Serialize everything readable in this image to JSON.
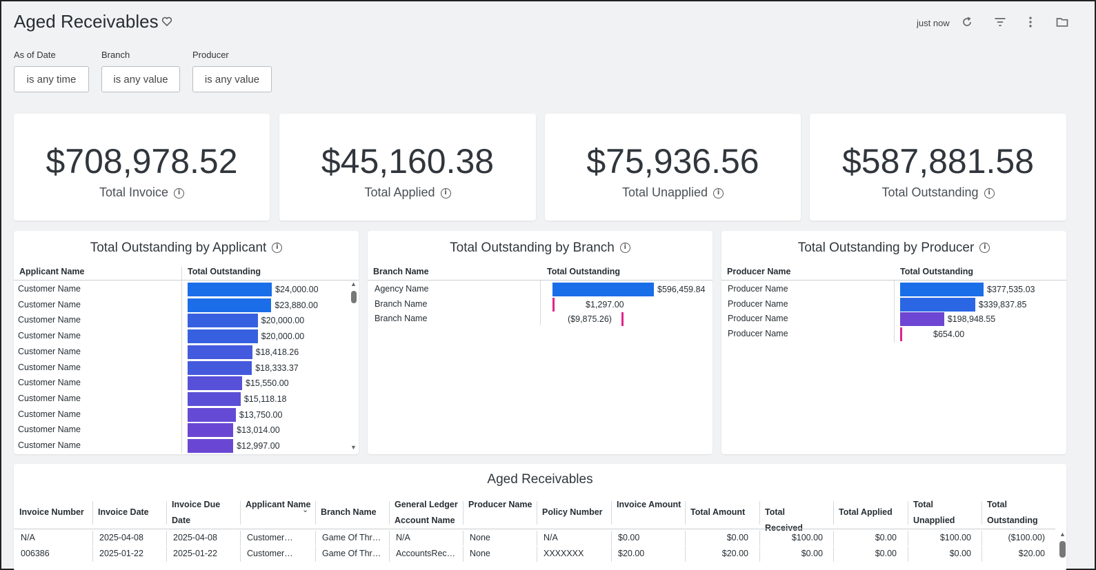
{
  "header": {
    "title": "Aged Receivables",
    "updated": "just now"
  },
  "filters": [
    {
      "label": "As of Date",
      "value": "is any time"
    },
    {
      "label": "Branch",
      "value": "is any value"
    },
    {
      "label": "Producer",
      "value": "is any value"
    }
  ],
  "kpis": [
    {
      "value": "$708,978.52",
      "label": "Total Invoice"
    },
    {
      "value": "$45,160.38",
      "label": "Total Applied"
    },
    {
      "value": "$75,936.56",
      "label": "Total Unapplied"
    },
    {
      "value": "$587,881.58",
      "label": "Total Outstanding"
    }
  ],
  "tiles": {
    "applicant": {
      "title": "Total Outstanding by Applicant",
      "col1": "Applicant Name",
      "col2": "Total Outstanding",
      "max": 24000,
      "rows": [
        {
          "name": "Customer Name",
          "value": 24000.0,
          "label": "$24,000.00"
        },
        {
          "name": "Customer Name",
          "value": 23880.0,
          "label": "$23,880.00"
        },
        {
          "name": "Customer Name",
          "value": 20000.0,
          "label": "$20,000.00"
        },
        {
          "name": "Customer Name",
          "value": 20000.0,
          "label": "$20,000.00"
        },
        {
          "name": "Customer Name",
          "value": 18418.26,
          "label": "$18,418.26"
        },
        {
          "name": "Customer Name",
          "value": 18333.37,
          "label": "$18,333.37"
        },
        {
          "name": "Customer Name",
          "value": 15550.0,
          "label": "$15,550.00"
        },
        {
          "name": "Customer Name",
          "value": 15118.18,
          "label": "$15,118.18"
        },
        {
          "name": "Customer Name",
          "value": 13750.0,
          "label": "$13,750.00"
        },
        {
          "name": "Customer Name",
          "value": 13014.0,
          "label": "$13,014.00"
        },
        {
          "name": "Customer Name",
          "value": 12997.0,
          "label": "$12,997.00"
        }
      ]
    },
    "branch": {
      "title": "Total Outstanding by Branch",
      "col1": "Branch Name",
      "col2": "Total Outstanding",
      "max": 596459.84,
      "rows": [
        {
          "name": "Agency Name",
          "value": 596459.84,
          "label": "$596,459.84"
        },
        {
          "name": "Branch Name",
          "value": 1297.0,
          "label": "$1,297.00"
        },
        {
          "name": "Branch Name",
          "value": -9875.26,
          "label": "($9,875.26)"
        }
      ]
    },
    "producer": {
      "title": "Total Outstanding by Producer",
      "col1": "Producer Name",
      "col2": "Total Outstanding",
      "max": 377535.03,
      "rows": [
        {
          "name": "Producer Name",
          "value": 377535.03,
          "label": "$377,535.03"
        },
        {
          "name": "Producer Name",
          "value": 339837.85,
          "label": "$339,837.85"
        },
        {
          "name": "Producer Name",
          "value": 198948.55,
          "label": "$198,948.55"
        },
        {
          "name": "Producer Name",
          "value": 654.0,
          "label": "$654.00"
        }
      ]
    }
  },
  "colors": {
    "bar_blue": "#1a6ee8",
    "bar_purple": "#7b3fcf",
    "bar_pink": "#e0248a"
  },
  "receivables": {
    "title": "Aged Receivables",
    "columns": [
      "Invoice Number",
      "Invoice Date",
      "Invoice Due Date",
      "Applicant Name",
      "Branch Name",
      "General Ledger Account Name",
      "Producer Name",
      "Policy Number",
      "Invoice Amount",
      "Total Amount",
      "Total Received",
      "Total Applied",
      "Total Unapplied",
      "Total Outstanding"
    ],
    "rows": [
      [
        "N/A",
        "2025-04-08",
        "2025-04-08",
        "Customer…",
        "Game Of Thr…",
        "N/A",
        "None",
        "N/A",
        "$0.00",
        "$0.00",
        "$100.00",
        "$0.00",
        "$100.00",
        "($100.00)"
      ],
      [
        "006386",
        "2025-01-22",
        "2025-01-22",
        "Customer…",
        "Game Of Thr…",
        "AccountsRec…",
        "None",
        "XXXXXXX",
        "$20.00",
        "$20.00",
        "$0.00",
        "$0.00",
        "$0.00",
        "$20.00"
      ]
    ]
  }
}
